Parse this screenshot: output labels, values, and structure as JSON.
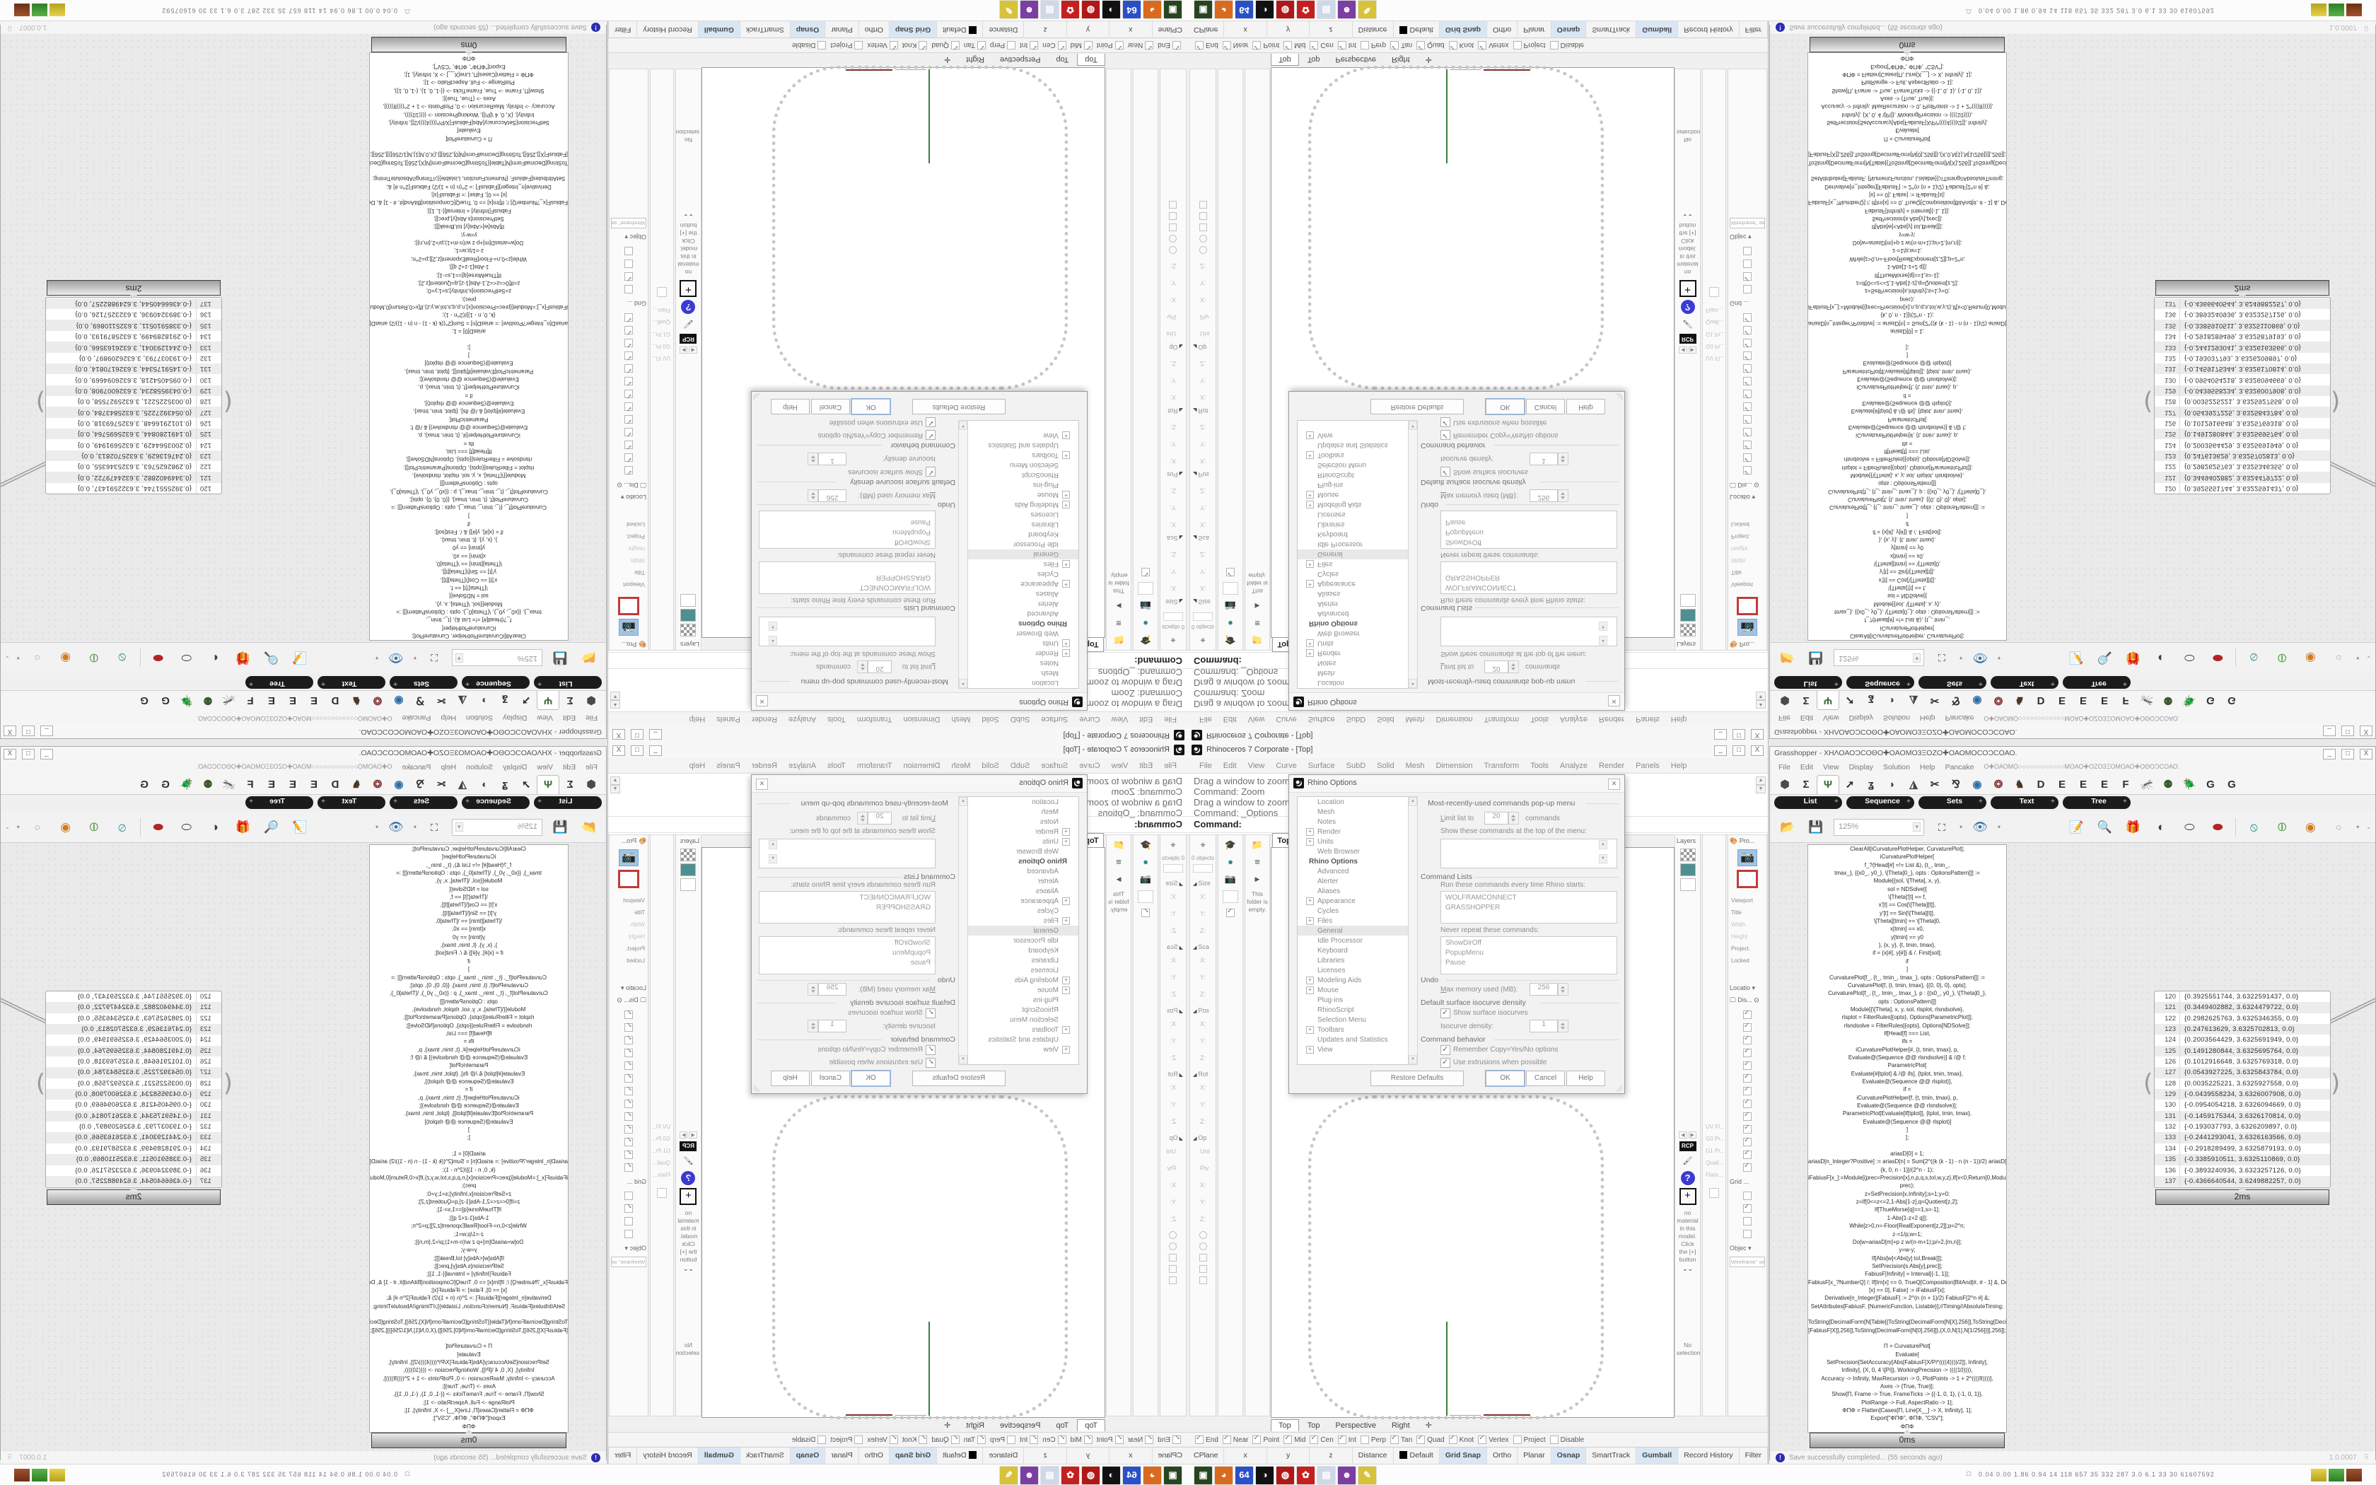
{
  "rhino": {
    "title": "Rhinoceros 7 Corporate - [Top]",
    "window_buttons": [
      "_",
      "□",
      "X"
    ],
    "menus": [
      "File",
      "Edit",
      "View",
      "Curve",
      "Surface",
      "SubD",
      "Solid",
      "Mesh",
      "Dimension",
      "Transform",
      "Tools",
      "Analyze",
      "Render",
      "Panels",
      "Help"
    ],
    "command_lines": [
      "Drag a window to zoom (",
      "Command: Zoom",
      "Drag a window to zoom (",
      "Command: _Options"
    ],
    "command_prompt": "Command:",
    "viewport_title_tab": "Top",
    "viewport_tabs": [
      "Top",
      "Top",
      "Perspective",
      "Right"
    ],
    "viewport_add_tab": "✛",
    "left_panel": {
      "objects_count": "0 objects",
      "boxedit_sections": [
        {
          "header": "Size",
          "fields": [
            "X:",
            "Y:",
            "Z:"
          ]
        },
        {
          "header": "Sca",
          "fields": [
            "X:",
            "Y:",
            "Z:"
          ]
        },
        {
          "header": "Pos",
          "fields": [
            "X:",
            "Y:",
            "Z:"
          ]
        },
        {
          "header": "Rot",
          "fields": [
            "X:",
            "Y:",
            "Z:"
          ]
        },
        {
          "header": "Op",
          "fields": [
            "Uni",
            "Piv",
            "X:",
            "Y:",
            "Z:"
          ]
        }
      ],
      "folder_note": "This folder is empty."
    },
    "right_panel": {
      "layers_label": "Layers",
      "properties_label": "Pro...",
      "properties_rows": [
        "Viewport",
        "Title",
        "Width",
        "Height",
        "Project.",
        "Locked"
      ],
      "materials_chip": "RCP",
      "materials_help": "?",
      "materials_add": "+",
      "materials_msg": "no material in this model. Click the [+] button",
      "materials_more": "⌄⌄",
      "no_selection": "No selection",
      "analysis_rows": [
        "UV Fl...",
        "G0 Pr...",
        "G1 Pr...",
        "Quali...",
        "Flatn..."
      ],
      "location_label": "Locatio",
      "display_label": "Dis...",
      "grid_label": "Grid ...",
      "object_label": "Objec",
      "display_dropdown": "Wireframe\" set..."
    },
    "osnap": [
      {
        "label": "End",
        "checked": true
      },
      {
        "label": "Near",
        "checked": true
      },
      {
        "label": "Point",
        "checked": true
      },
      {
        "label": "Mid",
        "checked": true
      },
      {
        "label": "Cen",
        "checked": true
      },
      {
        "label": "Int",
        "checked": true
      },
      {
        "label": "Perp",
        "checked": false
      },
      {
        "label": "Tan",
        "checked": true
      },
      {
        "label": "Quad",
        "checked": true
      },
      {
        "label": "Knot",
        "checked": true
      },
      {
        "label": "Vertex",
        "checked": true
      },
      {
        "label": "Project",
        "checked": false
      },
      {
        "label": "Disable",
        "checked": false
      }
    ],
    "status_items": [
      {
        "label": "CPlane"
      },
      {
        "label": "x",
        "wide": true
      },
      {
        "label": "y",
        "wide": true
      },
      {
        "label": "z",
        "wide": true
      },
      {
        "label": "Distance"
      },
      {
        "label": "Default",
        "swatch": true
      },
      {
        "label": "Grid Snap",
        "hl": true
      },
      {
        "label": "Ortho"
      },
      {
        "label": "Planar"
      },
      {
        "label": "Osnap",
        "hl": true
      },
      {
        "label": "SmartTrack"
      },
      {
        "label": "Gumball",
        "hl": true
      },
      {
        "label": "Record History"
      },
      {
        "label": "Filter"
      }
    ],
    "options_dialog": {
      "title": "Rhino Options",
      "tree": [
        {
          "label": "Location"
        },
        {
          "label": "Mesh"
        },
        {
          "label": "Notes"
        },
        {
          "label": "Render",
          "exp": true
        },
        {
          "label": "Units",
          "exp": true
        },
        {
          "label": "Web Browser"
        },
        {
          "label": "Rhino Options",
          "bold": true
        },
        {
          "label": "Advanced"
        },
        {
          "label": "Alerter"
        },
        {
          "label": "Aliases"
        },
        {
          "label": "Appearance",
          "exp": true
        },
        {
          "label": "Cycles"
        },
        {
          "label": "Files",
          "exp": true
        },
        {
          "label": "General",
          "sel": true
        },
        {
          "label": "Idle Processor"
        },
        {
          "label": "Keyboard"
        },
        {
          "label": "Libraries"
        },
        {
          "label": "Licenses"
        },
        {
          "label": "Modeling Aids",
          "exp": true
        },
        {
          "label": "Mouse",
          "exp": true
        },
        {
          "label": "Plug-ins"
        },
        {
          "label": "RhinoScript"
        },
        {
          "label": "Selection Menu"
        },
        {
          "label": "Toolbars",
          "exp": true
        },
        {
          "label": "Updates and Statistics"
        },
        {
          "label": "View",
          "exp": true
        }
      ],
      "mru_group": "Most-recently-used commands pop-up menu",
      "limit_label": "Limit list to",
      "limit_value": "20",
      "limit_suffix": "commands",
      "show_top_label": "Show these commands at the top of the menu:",
      "cmdlists_group": "Command Lists",
      "run_label": "Run these commands every time Rhino starts:",
      "run_items": "WOLFRAMCONNECT\nGRASSHOPPER",
      "never_label": "Never repeat these commands:",
      "never_items": "ShowDirOff\nPopupMenu\nPause",
      "undo_group": "Undo",
      "memory_label": "Max memory used (MB):",
      "memory_value": "256",
      "isocurve_group": "Default surface isocurve density",
      "isocurve_check": "Show surface isocurves",
      "density_label": "Isocurve density:",
      "density_value": "1",
      "behavior_group": "Command behavior",
      "behavior_check1": "Remember Copy=Yes/No options",
      "behavior_check2": "Use extrusions when possible",
      "restore_button": "Restore Defaults",
      "ok_button": "OK",
      "cancel_button": "Cancel",
      "help_button": "Help"
    }
  },
  "grasshopper": {
    "title": "Grasshopper - ΧΗΛΟΑΟϽCΟΘΟ✚ΟΑΟΜΟ3ΞΟΖΟ✚ΟΑΟΜΟCΟϽCΟΑΟ.",
    "menu_overflow": "Ο✚ΟΑΟΜΟ○○○○○○○○○○○○ΜΟΑΟ✚ΟΖΟ3ΞΟΜΟΑΟ✚ΟΘΟϽCΟΑΟ.",
    "menus": [
      "File",
      "Edit",
      "View",
      "Display",
      "Solution",
      "Help",
      "Pancake"
    ],
    "tabs": [
      {
        "name": "params-hexagon-icon",
        "glyph": "⬢",
        "color": "#4a4a4a"
      },
      {
        "name": "maths-sigma-icon",
        "glyph": "Σ",
        "color": "#333"
      },
      {
        "name": "sets-sprout-icon",
        "glyph": "Ψ",
        "color": "#3a6b35",
        "selected": true
      },
      {
        "name": "vector-arrow-icon",
        "glyph": "➚",
        "color": "#333"
      },
      {
        "name": "curve-spiral-icon",
        "glyph": "ʓ",
        "color": "#333"
      },
      {
        "name": "surface-icon",
        "glyph": "◗",
        "color": "#444"
      },
      {
        "name": "mesh-icon",
        "glyph": "◮",
        "color": "#444"
      },
      {
        "name": "intersect-icon",
        "glyph": "✂",
        "color": "#333"
      },
      {
        "name": "transform-icon",
        "glyph": "⅋",
        "color": "#333"
      },
      {
        "name": "display-eye-icon",
        "glyph": "◉",
        "color": "#2d6da3"
      },
      {
        "name": "plugin-ball-icon",
        "glyph": "❂",
        "color": "#8a3b3b"
      },
      {
        "name": "plugin-turkey-icon",
        "glyph": "♞",
        "color": "#4c3824"
      },
      {
        "name": "plugin-tab-d",
        "glyph": "D",
        "color": "#2f2f2f"
      },
      {
        "name": "plugin-tab-e1",
        "glyph": "E",
        "color": "#2f2f2f"
      },
      {
        "name": "plugin-tab-e2",
        "glyph": "E",
        "color": "#2f2f2f"
      },
      {
        "name": "plugin-tab-e3",
        "glyph": "E",
        "color": "#2f2f2f"
      },
      {
        "name": "plugin-tab-f",
        "glyph": "F",
        "color": "#2f2f2f"
      },
      {
        "name": "plugin-mosquito-icon",
        "glyph": "🦟",
        "color": "#555"
      },
      {
        "name": "plugin-frog-icon",
        "glyph": "⚉",
        "color": "#3c5a2e"
      },
      {
        "name": "plugin-beetle-icon",
        "glyph": "🪲",
        "color": "#3a3a3a"
      },
      {
        "name": "plugin-tab-g1",
        "glyph": "G",
        "color": "#2f2f2f"
      },
      {
        "name": "plugin-tab-g2",
        "glyph": "G",
        "color": "#2f2f2f"
      }
    ],
    "categories": [
      "List",
      "Sequence",
      "Sets",
      "Text",
      "Tree"
    ],
    "zoom_level": "125%",
    "code_panel": {
      "timer": "0ms",
      "lines": [
        "ClearAll[iCurvaturePlotHelper, CurvaturePlot];",
        "iCurvaturePlotHelper[",
        "f_?(Head[#] =!= List &), {t_, tmin_,",
        "tmax_}, {{x0_, y0_}, \\[Theta]0_}, opts : OptionsPattern[]] :=",
        "Module[{sol, \\[Theta], x, y},",
        "sol = NDSolve[{",
        "\\[Theta]'[t] == f,",
        "x'[t] == Cos[\\[Theta][t]],",
        "y'[t] == Sin[\\[Theta][t]],",
        "\\[Theta][tmin] == \\[Theta]0,",
        "x[tmin] == x0,",
        "y[tmin] == y0",
        "}, {x, y}, {t, tmin, tmax},",
        "if = {x[#], y[#]} & /. First[sol];",
        "if",
        "]",
        "CurvaturePlot[f_, {t_, tmin_, tmax_}, opts : OptionsPattern[]] :=",
        "CurvaturePlot[f, {t, tmin, tmax}, {{0, 0}, 0}, opts];",
        "CurvaturePlot[f_, {t_, tmin_, tmax_}, p : {{x0_, y0_}, \\[Theta]0_},",
        "opts : OptionsPattern[]]",
        "Module[{\\[Theta], x, y, sol, rlsplot, rlsndsolve},",
        "rlsplot = FilterRules[{opts}, Options[ParametricPlot]];",
        "rlsndsolve = FilterRules[{opts}, Options[NDSolve]];",
        "If[Head[f] === List,",
        "ifs =",
        "iCurvaturePlotHelper[#, {t, tmin, tmax}, p,",
        "Evaluate@(Sequence @@ rlsndsolve)] & /@ f;",
        "ParametricPlot[",
        "Evaluate[#[tplot] & /@ ifs], {tplot, tmin, tmax},",
        "Evaluate@(Sequence @@ rlsplot)],",
        "if =",
        "iCurvaturePlotHelper[f, {t, tmin, tmax}, p,",
        "Evaluate@(Sequence @@ rlsndsolve)];",
        "ParametricPlot[Evaluate[if[tplot]], {tplot, tmin, tmax},",
        "Evaluate@(Sequence @@ rlsplot)]",
        "]",
        "];",
        "",
        "ariasD[0] = 1;",
        "ariasD[n_Integer?Positive] := ariasD[n] = Sum[2^((k (k - 1) - n (n - 1))/2) ariasD[k]/(n - k + 1)!,",
        "{k, 0, n - 1}]/(2^n - 1);",
        "iFabiusF[x_]:=Module[{prec=Precision[x],n,p,q,s,tol,w,y,z},If[x<0,Return[0,Module]];tol=10^(-",
        "prec);",
        "z=SetPrecision[x,Infinity];s=1;y=0;",
        "z=If[0<=z<=2,1-Abs[1-z],q=Quotient[z,2];",
        "If[ThueMorse[q]==1,s=-1];",
        "1-Abs[1-z+2 q]];",
        "While[z>0,n=-Floor[RealExponent[z,2]];p=2^n;",
        "z-=1/p;w=1;",
        "Do[w=ariasD[m]+p z w/(n-m+1);p/=2,{m,n}];",
        "y=w-y;",
        "If[Abs[w]<Abs[y] tol,Break[]];",
        "SetPrecision[s Abs[y],prec]];",
        "FabiusF[Infinity] = Interval[{-1, 1}];",
        "FabiusF[x_?NumberQ] /; If[Im[x] == 0, TrueQ[Composition[BitAnd[#, # - 1] &, Denominator]",
        "[x] == 0], False] := iFabiusF[x];",
        "Derivative[n_Integer][FabiusF] := 2^(n (n + 1)/2) FabiusF[2^n #] &;",
        "SetAttributes[FabiusF, {NumericFunction, Listable}];//Timing//AbsoluteTiming;",
        "",
        "ToString[DecimalForm[N[Table[{ToString[DecimalForm[N[X],256]],ToString[DecimalForm[N",
        "[FabiusF[X]],256]],ToString[DecimalForm[N[0],256]]},{X,0,N[1],N[1/256]}]],256]];",
        "",
        "Π = CurvaturePlot[",
        "Evaluate[",
        "SetPrecision[SetAccuracy[Abs[FabiusF[X/Pi*((((4))))/2]], Infinity],",
        "Infinity], {X, 0, 4 \\[Pi]}, WorkingPrecision -> ((((10)))),",
        "Accuracy -> Infinity, MaxRecursion -> 0, PlotPoints -> 1 + 2^((((8))))],",
        "Axes -> {True, True}];",
        "Show[Π, Frame -> True, FrameTicks -> {{-1, 0, 1}, {-1, 0, 1}},",
        "PlotRange -> Full, AspectRatio -> 1];",
        "ΦΠΦ = Flatten[Cases[Π, Line[X__] -> X, Infinity], 1];",
        "Export[\"ΦΠΦ\", ΦΠΦ, \"CSV\"];",
        "ΦΠΦ"
      ]
    },
    "table_panel": {
      "timer": "2ms",
      "rows": [
        {
          "n": "120",
          "v": "{0.3925551744, 3.6322591437, 0.0}"
        },
        {
          "n": "121",
          "v": "{0.3449402882, 3.6324479722, 0.0}"
        },
        {
          "n": "122",
          "v": "{0.2982625763, 3.6325346355, 0.0}"
        },
        {
          "n": "123",
          "v": "{0.247613629, 3.6325702813, 0.0}"
        },
        {
          "n": "124",
          "v": "{0.2003564429, 3.6325691949, 0.0}"
        },
        {
          "n": "125",
          "v": "{0.1491280844, 3.6325695764, 0.0}"
        },
        {
          "n": "126",
          "v": "{0.1012916648, 3.6325769318, 0.0}"
        },
        {
          "n": "127",
          "v": "{0.0543927225, 3.6325843784, 0.0}"
        },
        {
          "n": "128",
          "v": "{0.0035225221, 3.6325927558, 0.0}"
        },
        {
          "n": "129",
          "v": "{-0.0439558234, 3.6326007908, 0.0}"
        },
        {
          "n": "130",
          "v": "{-0.0954054218, 3.6326094669, 0.0}"
        },
        {
          "n": "131",
          "v": "{-0.1459175344, 3.6326170814, 0.0}"
        },
        {
          "n": "132",
          "v": "{-0.193037793, 3.6326209897, 0.0}"
        },
        {
          "n": "133",
          "v": "{-0.2441293041, 3.6326163566, 0.0}"
        },
        {
          "n": "134",
          "v": "{-0.2918289499, 3.6325879193, 0.0}"
        },
        {
          "n": "135",
          "v": "{-0.3385910511, 3.6325110869, 0.0}"
        },
        {
          "n": "136",
          "v": "{-0.3893240936, 3.6323257126, 0.0}"
        },
        {
          "n": "137",
          "v": "{-0.4366640544, 3.6249882257, 0.0}"
        }
      ]
    },
    "status_message": "Save successfully completed... (55 seconds ago)",
    "status_version": "1.0.0007"
  },
  "taskbar": {
    "monitor_values": "0.04 0.00 1.86 0.94   14   118   657   35   332  287   3.0   6.1   33   30  61607592",
    "icons": [
      {
        "name": "system-monitor-icon",
        "color": "#27451f",
        "glyph": "▣"
      },
      {
        "name": "firefox-icon",
        "color": "#d96a1e",
        "glyph": "◕"
      },
      {
        "name": "emulator-floppy-icon",
        "color": "#2a50c8",
        "glyph": "64"
      },
      {
        "name": "rhino-app-icon",
        "color": "#111111",
        "glyph": "◑"
      },
      {
        "name": "red-app-icon",
        "color": "#b01818",
        "glyph": "◍"
      },
      {
        "name": "settings-gear-icon",
        "color": "#c42020",
        "glyph": "✿"
      },
      {
        "name": "notepad-icon",
        "color": "#cfd8e8",
        "glyph": "▤"
      },
      {
        "name": "voice-changer-icon",
        "color": "#7a3fa0",
        "glyph": "☻"
      },
      {
        "name": "paint-palette-icon",
        "color": "#d8c23a",
        "glyph": "✎"
      }
    ]
  }
}
